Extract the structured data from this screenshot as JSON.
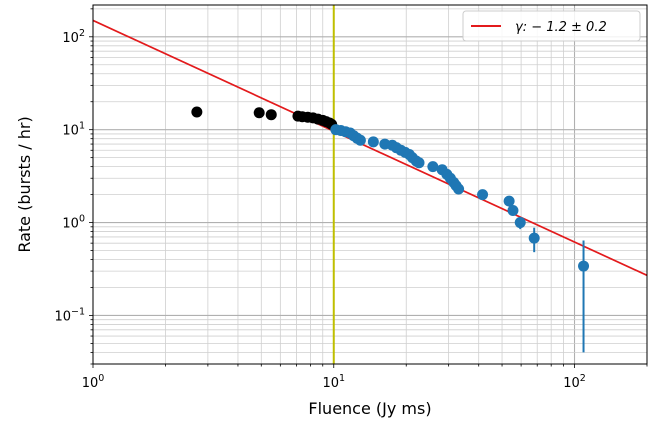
{
  "chart_data": {
    "type": "scatter",
    "xlabel": "Fluence (Jy ms)",
    "ylabel": "Rate (bursts / hr)",
    "xscale": "log",
    "yscale": "log",
    "xlim": [
      1,
      200
    ],
    "ylim": [
      0.03,
      220
    ],
    "grid": "major and minor",
    "x_ticks": [
      {
        "value": 1,
        "base": "10",
        "exp": "0"
      },
      {
        "value": 10,
        "base": "10",
        "exp": "1"
      },
      {
        "value": 100,
        "base": "10",
        "exp": "2"
      }
    ],
    "y_ticks": [
      {
        "value": 0.1,
        "base": "10",
        "exp": "−1"
      },
      {
        "value": 1,
        "base": "10",
        "exp": "0"
      },
      {
        "value": 10,
        "base": "10",
        "exp": "1"
      },
      {
        "value": 100,
        "base": "10",
        "exp": "2"
      }
    ],
    "threshold_line": {
      "x": 10,
      "color": "#bfbf00"
    },
    "fit_line": {
      "label": "γ: − 1.2 ± 0.2",
      "color": "#e31a1c",
      "x": [
        1,
        200
      ],
      "y": [
        150,
        0.27
      ]
    },
    "series": [
      {
        "color": "#000000",
        "points": [
          {
            "x": 2.7,
            "y": 15.5
          },
          {
            "x": 4.9,
            "y": 15.2
          },
          {
            "x": 5.5,
            "y": 14.5
          },
          {
            "x": 7.1,
            "y": 14.0
          },
          {
            "x": 7.4,
            "y": 13.8
          },
          {
            "x": 7.8,
            "y": 13.6
          },
          {
            "x": 8.2,
            "y": 13.4
          },
          {
            "x": 8.6,
            "y": 13.0
          },
          {
            "x": 9.0,
            "y": 12.6
          },
          {
            "x": 9.3,
            "y": 12.2
          },
          {
            "x": 9.6,
            "y": 11.8
          },
          {
            "x": 9.8,
            "y": 11.4
          }
        ]
      },
      {
        "color": "#1f77b4",
        "points": [
          {
            "x": 10.2,
            "y": 10.0
          },
          {
            "x": 10.7,
            "y": 9.8
          },
          {
            "x": 11.2,
            "y": 9.5
          },
          {
            "x": 11.7,
            "y": 9.2
          },
          {
            "x": 12.1,
            "y": 8.6
          },
          {
            "x": 12.5,
            "y": 8.1
          },
          {
            "x": 12.9,
            "y": 7.7
          },
          {
            "x": 14.6,
            "y": 7.4
          },
          {
            "x": 16.3,
            "y": 7.0
          },
          {
            "x": 17.5,
            "y": 6.8
          },
          {
            "x": 18.2,
            "y": 6.4
          },
          {
            "x": 19.0,
            "y": 6.0
          },
          {
            "x": 19.8,
            "y": 5.7
          },
          {
            "x": 20.6,
            "y": 5.4
          },
          {
            "x": 21.2,
            "y": 5.0
          },
          {
            "x": 22.0,
            "y": 4.6
          },
          {
            "x": 22.6,
            "y": 4.4
          },
          {
            "x": 25.8,
            "y": 4.0
          },
          {
            "x": 28.2,
            "y": 3.7
          },
          {
            "x": 29.5,
            "y": 3.3
          },
          {
            "x": 30.5,
            "y": 3.0
          },
          {
            "x": 31.5,
            "y": 2.7
          },
          {
            "x": 32.2,
            "y": 2.5
          },
          {
            "x": 33.0,
            "y": 2.3
          },
          {
            "x": 41.5,
            "y": 2.0
          },
          {
            "x": 53.5,
            "y": 1.7
          },
          {
            "x": 55.5,
            "y": 1.35
          },
          {
            "x": 59.5,
            "y": 1.0,
            "err": 0.15
          },
          {
            "x": 68.0,
            "y": 0.68,
            "err": 0.2
          },
          {
            "x": 109.0,
            "y": 0.34,
            "err": 0.3
          }
        ]
      }
    ]
  }
}
